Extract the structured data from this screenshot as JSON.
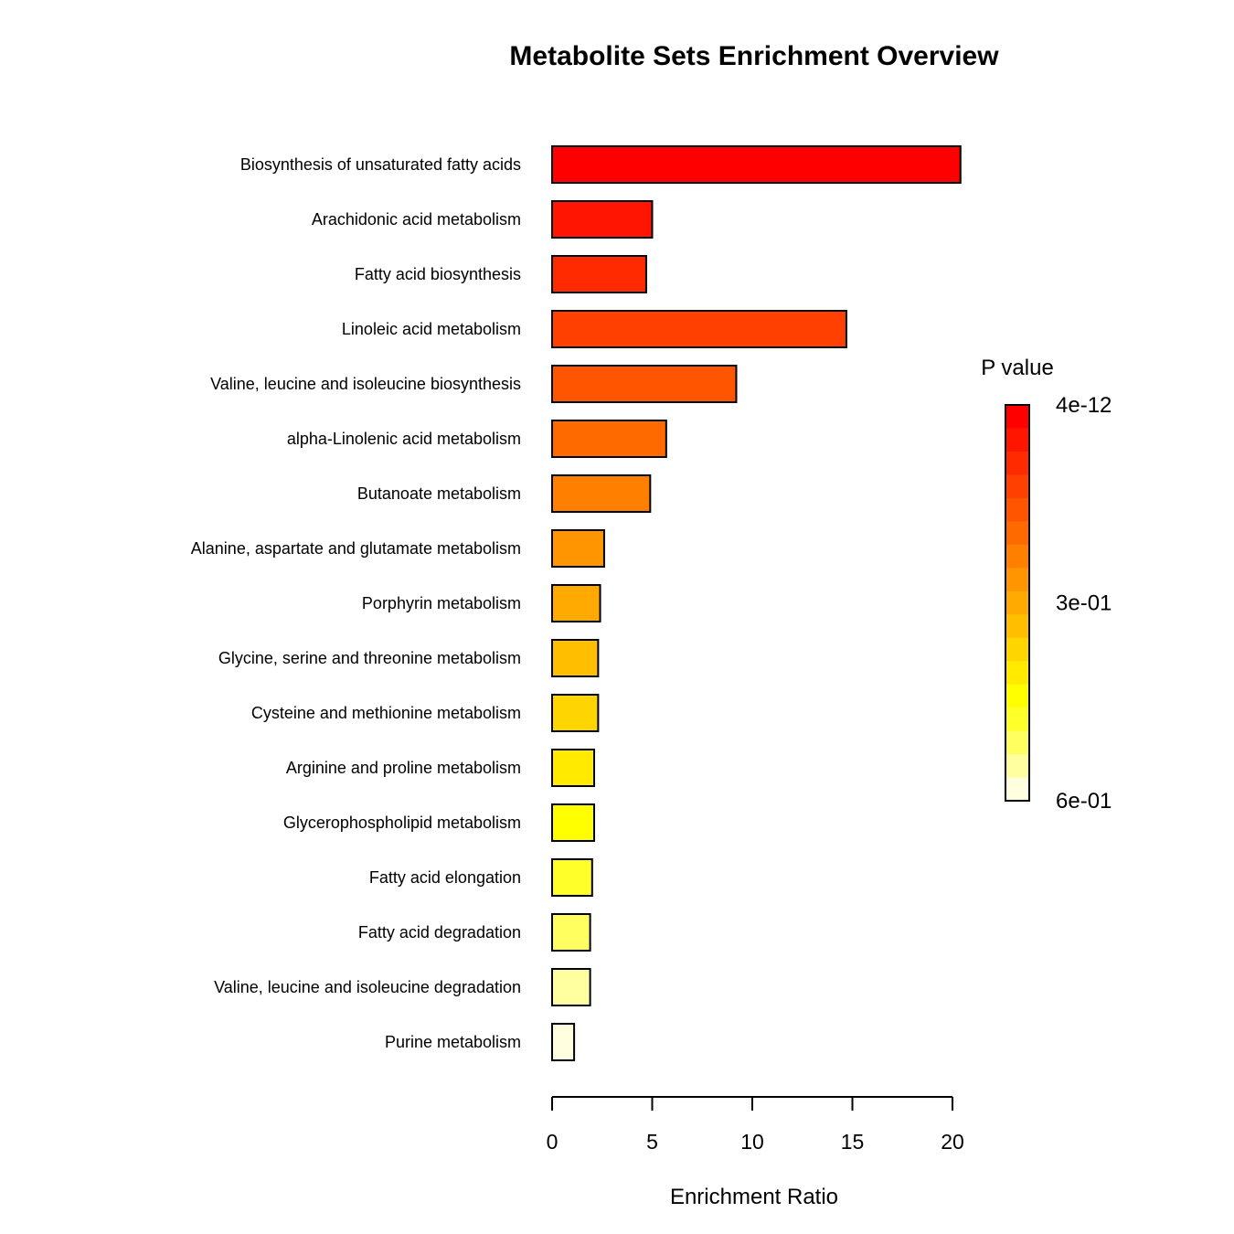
{
  "chart_data": {
    "type": "bar",
    "orientation": "horizontal",
    "title": "Metabolite Sets Enrichment Overview",
    "xlabel": "Enrichment Ratio",
    "ylabel": "",
    "xlim": [
      0,
      20
    ],
    "xticks": [
      0,
      5,
      10,
      15,
      20
    ],
    "xtick_labels": [
      "0",
      "5",
      "10",
      "15",
      "20"
    ],
    "grid": false,
    "categories": [
      "Biosynthesis of unsaturated fatty acids",
      "Arachidonic acid metabolism",
      "Fatty acid biosynthesis",
      "Linoleic acid metabolism",
      "Valine, leucine and isoleucine biosynthesis",
      "alpha-Linolenic acid metabolism",
      "Butanoate metabolism",
      "Alanine, aspartate and glutamate metabolism",
      "Porphyrin metabolism",
      "Glycine, serine and threonine metabolism",
      "Cysteine and methionine metabolism",
      "Arginine and proline metabolism",
      "Glycerophospholipid metabolism",
      "Fatty acid elongation",
      "Fatty acid degradation",
      "Valine, leucine and isoleucine degradation",
      "Purine metabolism"
    ],
    "values": [
      20.4,
      5.0,
      4.7,
      14.7,
      9.2,
      5.7,
      4.9,
      2.6,
      2.4,
      2.3,
      2.3,
      2.1,
      2.1,
      2.0,
      1.9,
      1.9,
      1.1
    ],
    "bar_colors": [
      "#FF0000",
      "#FF1500",
      "#FF2A00",
      "#FF4000",
      "#FF5500",
      "#FF6A00",
      "#FF8000",
      "#FF9500",
      "#FFAA00",
      "#FFBF00",
      "#FFD500",
      "#FFEA00",
      "#FFFF00",
      "#FFFF2A",
      "#FFFF60",
      "#FFFF9F",
      "#FFFFDF"
    ],
    "legend": {
      "title": "P value",
      "placement": "right",
      "labels": [
        "4e-12",
        "3e-01",
        "6e-01"
      ],
      "colors": [
        "#FF0000",
        "#FF1500",
        "#FF2A00",
        "#FF4000",
        "#FF5500",
        "#FF6A00",
        "#FF8000",
        "#FF9500",
        "#FFAA00",
        "#FFBF00",
        "#FFD500",
        "#FFEA00",
        "#FFFF00",
        "#FFFF2A",
        "#FFFF60",
        "#FFFF9F",
        "#FFFFDF"
      ]
    }
  }
}
